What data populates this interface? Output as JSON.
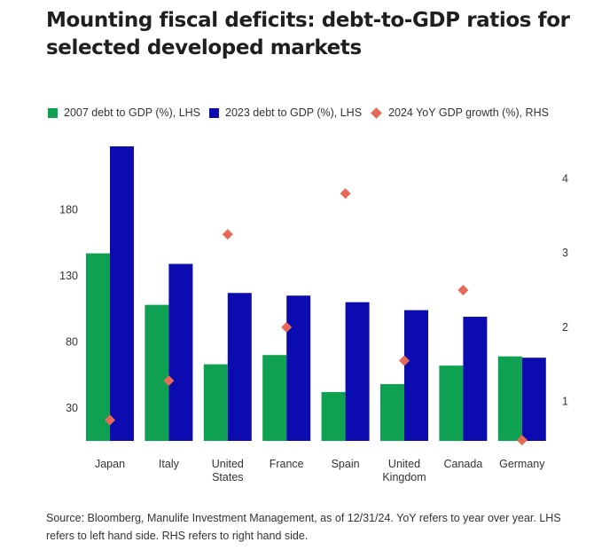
{
  "title": "Mounting fiscal deficits: debt-to-GDP ratios for selected developed markets",
  "source": "Source: Bloomberg, Manulife Investment Management, as of 12/31/24. YoY refers to year over year. LHS refers to left hand side. RHS refers to right hand side.",
  "colors": {
    "debt2007": "#0ea152",
    "debt2023": "#0b0bb0",
    "growth2024": "#e66a58"
  },
  "chart_data": {
    "type": "bar",
    "categories": [
      "Japan",
      "Italy",
      "United\nStates",
      "France",
      "Spain",
      "United\nKingdom",
      "Canada",
      "Germany"
    ],
    "series": [
      {
        "name": "2007 debt to GDP (%), LHS",
        "type": "bar",
        "axis": "left",
        "values": [
          147,
          108,
          63,
          70,
          42,
          48,
          62,
          69
        ]
      },
      {
        "name": "2023 debt to GDP (%), LHS",
        "type": "bar",
        "axis": "left",
        "values": [
          228,
          139,
          117,
          115,
          110,
          104,
          99,
          68
        ]
      },
      {
        "name": "2024 YoY GDP growth (%), RHS",
        "type": "scatter",
        "axis": "right",
        "values": [
          0.75,
          1.28,
          3.25,
          2.0,
          3.8,
          1.55,
          2.5,
          0.48
        ]
      }
    ],
    "y_left": {
      "ticks": [
        30,
        80,
        130,
        180
      ],
      "lim": [
        5,
        230
      ]
    },
    "y_right": {
      "ticks": [
        1,
        2,
        3,
        4
      ],
      "lim": [
        0.47,
        4.47
      ]
    },
    "grid": false,
    "legend_position": "top-left"
  }
}
